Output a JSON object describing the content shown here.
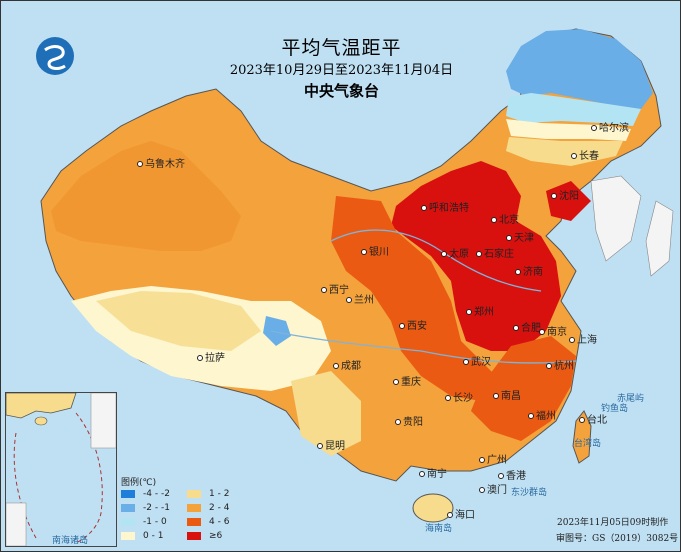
{
  "header": {
    "title": "平均气温距平",
    "date_range": "2023年10月29日至2023年11月04日",
    "agency": "中央气象台"
  },
  "legend": {
    "title": "图例(℃)",
    "items": [
      {
        "label": "-4 - -2",
        "color": "#1f7fd8"
      },
      {
        "label": "1 - 2",
        "color": "#f6dc8c"
      },
      {
        "label": "-2 - -1",
        "color": "#6aaee8"
      },
      {
        "label": "2 - 4",
        "color": "#f3a23c"
      },
      {
        "label": "-1 - 0",
        "color": "#b3e4f3"
      },
      {
        "label": "4 - 6",
        "color": "#ea5a12"
      },
      {
        "label": "0 - 1",
        "color": "#fdf6cf"
      },
      {
        "label": "≥6",
        "color": "#d8110f"
      }
    ]
  },
  "cities": {
    "harbin": "哈尔滨",
    "changchun": "长春",
    "shenyang": "沈阳",
    "hohhot": "呼和浩特",
    "beijing": "北京",
    "tianjin": "天津",
    "yinchuan": "银川",
    "taiyuan": "太原",
    "shijiazhuang": "石家庄",
    "jinan": "济南",
    "xining": "西宁",
    "lanzhou": "兰州",
    "zhengzhou": "郑州",
    "xian": "西安",
    "hefei": "合肥",
    "nanjing": "南京",
    "shanghai": "上海",
    "lhasa": "拉萨",
    "chengdu": "成都",
    "wuhan": "武汉",
    "hangzhou": "杭州",
    "chongqing": "重庆",
    "changsha": "长沙",
    "nanchang": "南昌",
    "fuzhou": "福州",
    "taibei": "台北",
    "guiyang": "贵阳",
    "kunming": "昆明",
    "nanning": "南宁",
    "guangzhou": "广州",
    "hongkong": "香港",
    "macau": "澳门",
    "haikou": "海口",
    "urumqi": "乌鲁木齐"
  },
  "map_labels": {
    "taiwan_island": "台湾岛",
    "hainan_island": "海南岛",
    "diaoyu": "钓鱼岛",
    "chiwei": "赤尾屿",
    "dongsha": "东沙群岛",
    "south_sea_islands": "南海诸岛"
  },
  "footer": {
    "made": "2023年11月05日09时制作",
    "review": "审图号：GS（2019）3082号"
  },
  "colors": {
    "sea": "#bfe0f3",
    "cold2": "#6aaee8",
    "cold1": "#b3e4f3",
    "near0": "#fdf6cf",
    "w1": "#f6dc8c",
    "w2": "#f3a23c",
    "w3": "#ea5a12",
    "w4": "#d8110f"
  }
}
